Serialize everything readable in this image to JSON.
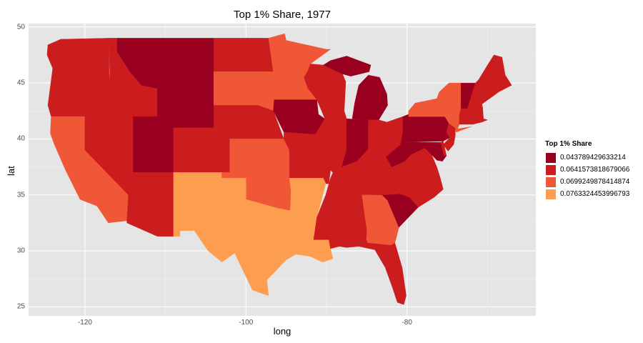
{
  "chart_data": {
    "type": "choropleth",
    "title": "Top 1% Share, 1977",
    "xlabel": "long",
    "ylabel": "lat",
    "xlim": [
      -127,
      -64
    ],
    "ylim": [
      24.2,
      50.3
    ],
    "x_ticks": [
      -120,
      -100,
      -80
    ],
    "y_ticks": [
      25,
      30,
      35,
      40,
      45,
      50
    ],
    "grid": true,
    "legend": {
      "title": "Top 1% Share",
      "placement": "right",
      "entries": [
        {
          "label": "0.043789429633214",
          "color": "#99001f"
        },
        {
          "label": "0.0641573818679066",
          "color": "#cb1c1e"
        },
        {
          "label": "0.0699249878414874",
          "color": "#f05736"
        },
        {
          "label": "0.0763324453996793",
          "color": "#fd9d4f"
        }
      ]
    },
    "regions": [
      {
        "name": "Washington",
        "bin": 1
      },
      {
        "name": "Oregon",
        "bin": 1
      },
      {
        "name": "California",
        "bin": 2
      },
      {
        "name": "Nevada",
        "bin": 1
      },
      {
        "name": "Idaho",
        "bin": 1
      },
      {
        "name": "Montana",
        "bin": 0
      },
      {
        "name": "Wyoming",
        "bin": 0
      },
      {
        "name": "Utah",
        "bin": 0
      },
      {
        "name": "Arizona",
        "bin": 1
      },
      {
        "name": "Colorado",
        "bin": 1
      },
      {
        "name": "New Mexico",
        "bin": 3
      },
      {
        "name": "North Dakota",
        "bin": 1
      },
      {
        "name": "South Dakota",
        "bin": 2
      },
      {
        "name": "Nebraska",
        "bin": 1
      },
      {
        "name": "Kansas",
        "bin": 2
      },
      {
        "name": "Oklahoma",
        "bin": 2
      },
      {
        "name": "Texas",
        "bin": 3
      },
      {
        "name": "Minnesota",
        "bin": 2
      },
      {
        "name": "Iowa",
        "bin": 0
      },
      {
        "name": "Missouri",
        "bin": 1
      },
      {
        "name": "Arkansas",
        "bin": 3
      },
      {
        "name": "Louisiana",
        "bin": 3
      },
      {
        "name": "Wisconsin",
        "bin": 1
      },
      {
        "name": "Illinois",
        "bin": 1
      },
      {
        "name": "Michigan",
        "bin": 0
      },
      {
        "name": "Indiana",
        "bin": 0
      },
      {
        "name": "Ohio",
        "bin": 1
      },
      {
        "name": "Kentucky",
        "bin": 1
      },
      {
        "name": "Tennessee",
        "bin": 1
      },
      {
        "name": "Mississippi",
        "bin": 1
      },
      {
        "name": "Alabama",
        "bin": 1
      },
      {
        "name": "Georgia",
        "bin": 2
      },
      {
        "name": "Florida",
        "bin": 1
      },
      {
        "name": "South Carolina",
        "bin": 0
      },
      {
        "name": "North Carolina",
        "bin": 1
      },
      {
        "name": "Virginia",
        "bin": 1
      },
      {
        "name": "West Virginia",
        "bin": 0
      },
      {
        "name": "Maryland",
        "bin": 0
      },
      {
        "name": "Delaware",
        "bin": 1
      },
      {
        "name": "Pennsylvania",
        "bin": 0
      },
      {
        "name": "New Jersey",
        "bin": 1
      },
      {
        "name": "New York",
        "bin": 2
      },
      {
        "name": "Connecticut",
        "bin": 1
      },
      {
        "name": "Rhode Island",
        "bin": 1
      },
      {
        "name": "Massachusetts",
        "bin": 1
      },
      {
        "name": "Vermont",
        "bin": 0
      },
      {
        "name": "New Hampshire",
        "bin": 1
      },
      {
        "name": "Maine",
        "bin": 1
      }
    ]
  }
}
